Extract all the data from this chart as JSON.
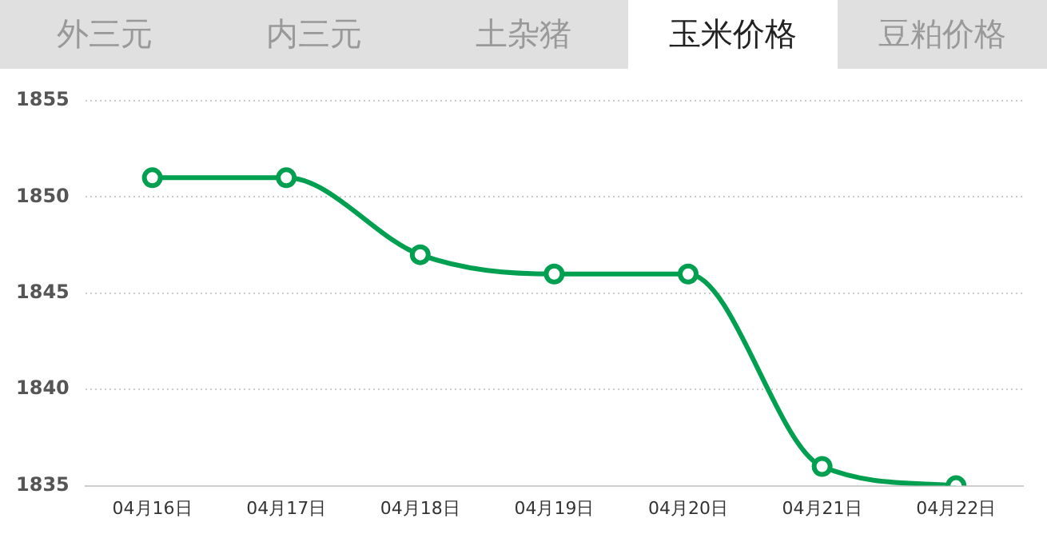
{
  "chart_data": {
    "type": "line",
    "title": "玉米价格",
    "annotations": [
      "外三元",
      "内三元",
      "土杂猪",
      "豆粕价格"
    ],
    "categories": [
      "04月16日",
      "04月17日",
      "04月18日",
      "04月19日",
      "04月20日",
      "04月21日",
      "04月22日"
    ],
    "series": [
      {
        "color": "#00a050",
        "values": [
          1851,
          1851,
          1847,
          1846,
          1846,
          1836,
          1835
        ]
      }
    ],
    "ylim": [
      1835,
      1855
    ],
    "yticks": [
      1835,
      1840,
      1845,
      1850,
      1855
    ],
    "grid": "y",
    "legend": false,
    "marker": "circle",
    "line_style": "solid"
  }
}
